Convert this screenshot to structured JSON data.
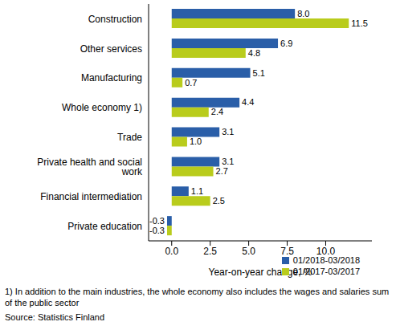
{
  "chart_data": {
    "type": "bar",
    "orientation": "horizontal",
    "x_label": "Year-on-year change, %",
    "categories": [
      "Construction",
      "Other services",
      "Manufacturing",
      "Whole economy 1)",
      "Trade",
      "Private health and social work",
      "Financial intermediation",
      "Private education"
    ],
    "series": [
      {
        "name": "01/2018-03/2018",
        "color": "#2a5ea8",
        "values": [
          8.0,
          6.9,
          5.1,
          4.4,
          3.1,
          3.1,
          1.1,
          -0.3
        ],
        "value_labels": [
          "8.0",
          "6.9",
          "5.1",
          "4.4",
          "3.1",
          "3.1",
          "1.1",
          "-0.3"
        ]
      },
      {
        "name": "01/2017-03/2017",
        "color": "#b9cc1c",
        "values": [
          11.5,
          4.8,
          0.7,
          2.4,
          1.0,
          2.7,
          2.5,
          -0.3
        ],
        "value_labels": [
          "11.5",
          "4.8",
          "0.7",
          "2.4",
          "1.0",
          "2.7",
          "2.5",
          "-0.3"
        ]
      }
    ],
    "xlim": [
      -1.5,
      13
    ],
    "xticks": [
      {
        "value": 0,
        "label": "0.0"
      },
      {
        "value": 2.5,
        "label": "2.5"
      },
      {
        "value": 5,
        "label": "5.0"
      },
      {
        "value": 7.5,
        "label": "7.5"
      },
      {
        "value": 10,
        "label": "10.0"
      }
    ],
    "grid": false,
    "legend": "lower right",
    "data_labels": true,
    "annotations": [
      "1) In addition to the main industries, the whole economy also includes the wages and salaries sum of the public sector",
      "Source: Statistics Finland"
    ]
  }
}
